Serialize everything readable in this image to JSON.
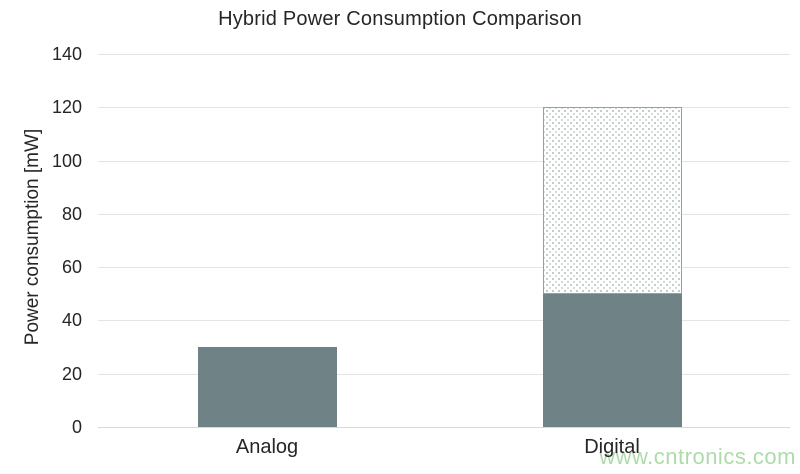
{
  "chart_data": {
    "type": "bar",
    "stacked": true,
    "title": "Hybrid Power Consumption Comparison",
    "ylabel": "Power consumption [mW]",
    "xlabel": "",
    "categories": [
      "Analog",
      "Digital"
    ],
    "series": [
      {
        "name": "solid-fill",
        "values": [
          30,
          50
        ],
        "color": "#6f8285",
        "pattern": "solid"
      },
      {
        "name": "dotted-fill",
        "values": [
          0,
          70
        ],
        "color": "#ffffff",
        "pattern": "dotted",
        "border_color": "#93a1a2",
        "dot_color": "#b9c4c4"
      }
    ],
    "ylim": [
      0,
      140
    ],
    "yticks": [
      0,
      20,
      40,
      60,
      80,
      100,
      120,
      140
    ],
    "grid": true,
    "legend": "none"
  },
  "watermark": {
    "text": "www.cntronics.com",
    "color": "#aedbaa"
  },
  "colors": {
    "text": "#262626",
    "gridline": "#e4e4e4",
    "axis_line": "#d9d9d9",
    "bar_fill": "#6f8285"
  }
}
